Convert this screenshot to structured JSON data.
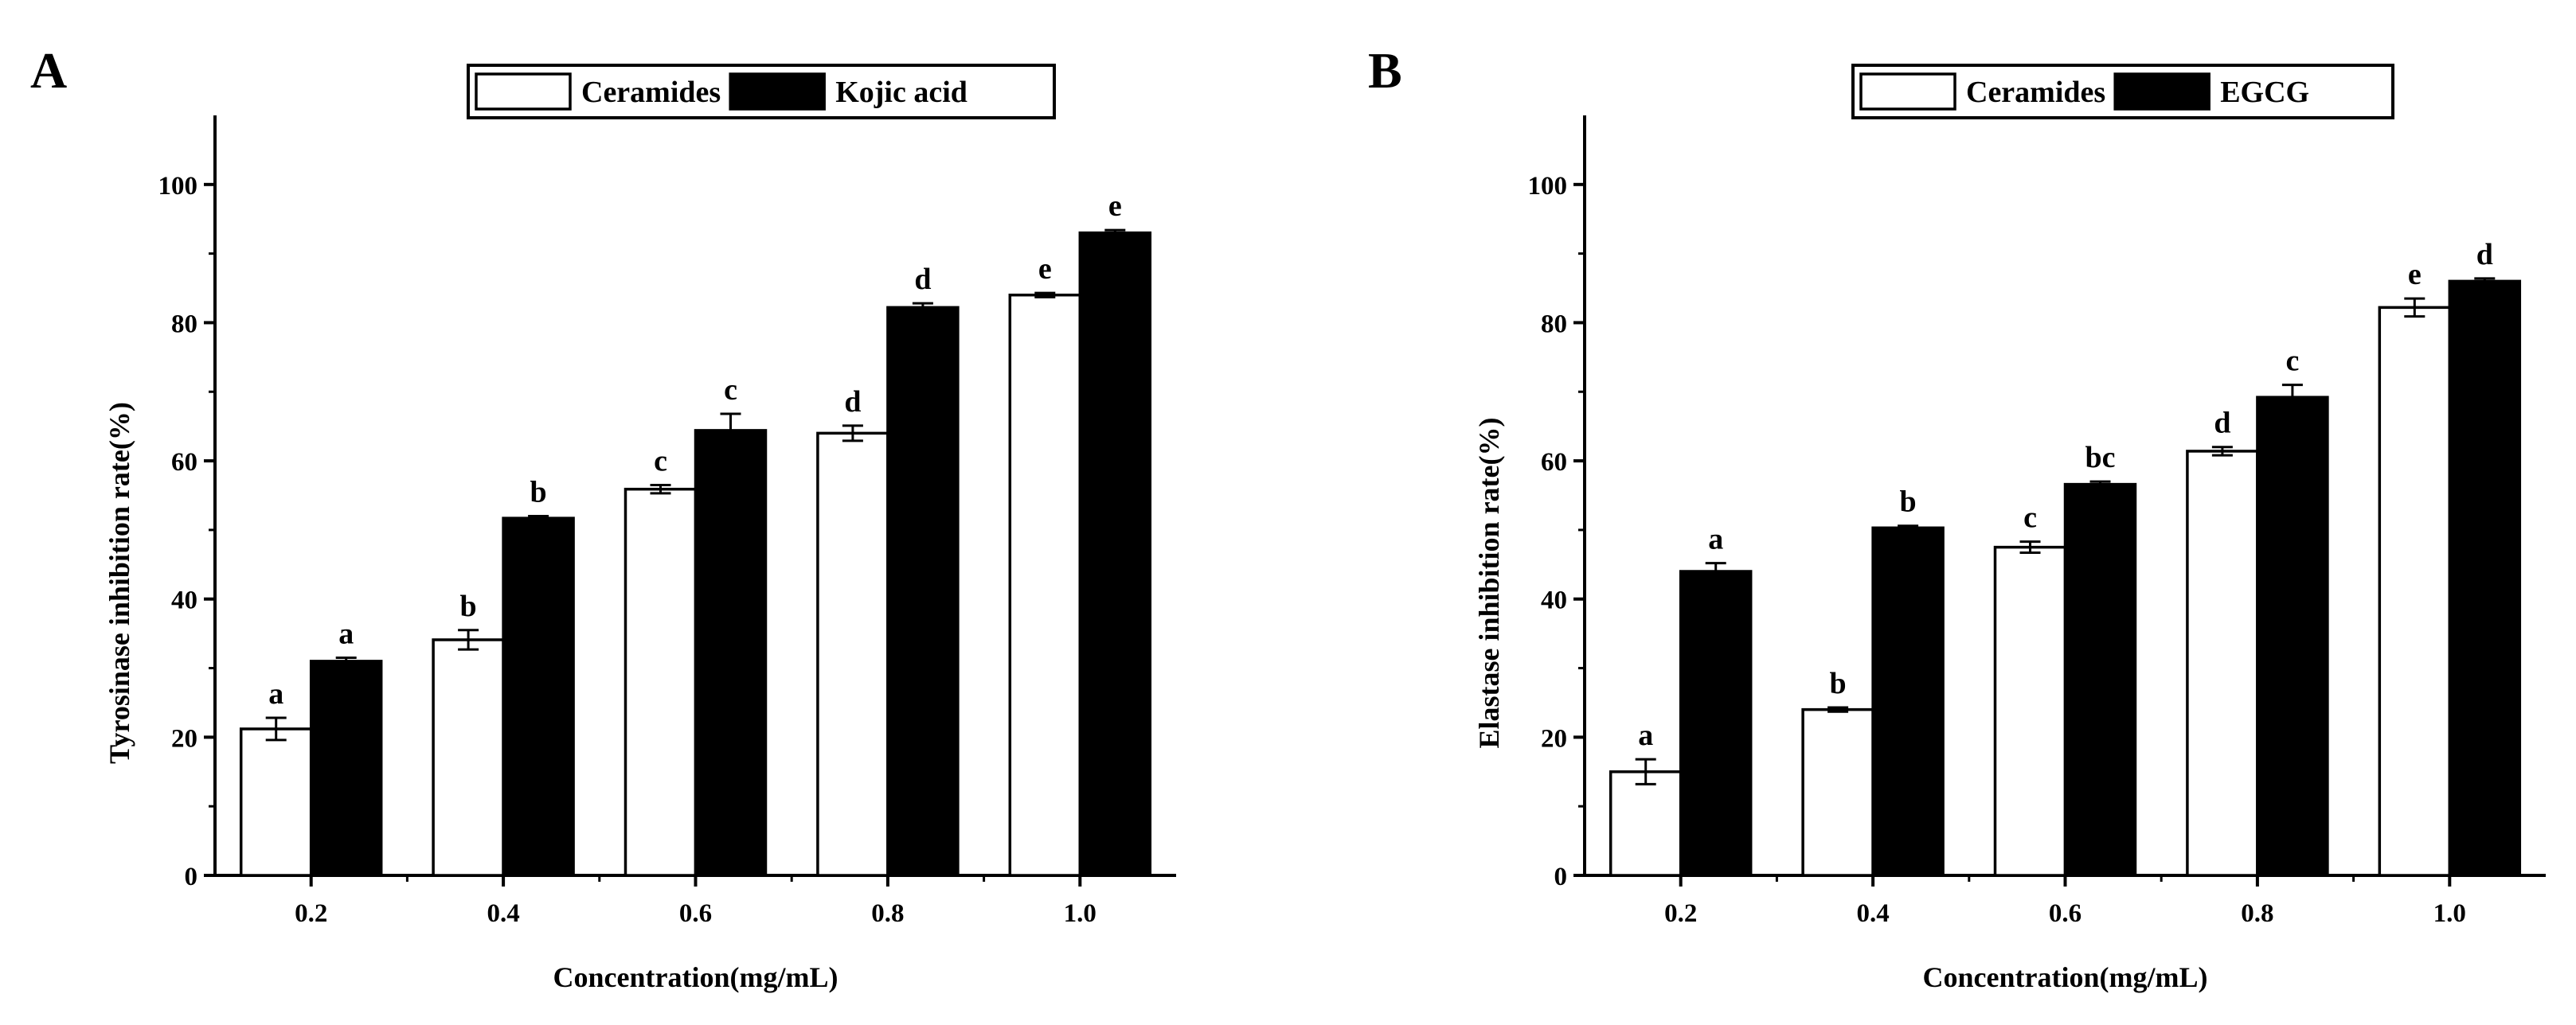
{
  "chart_data": [
    {
      "type": "bar",
      "panel": "A",
      "categories": [
        "0.2",
        "0.4",
        "0.6",
        "0.8",
        "1.0"
      ],
      "xlabel": "Concentration(mg/mL)",
      "ylabel": "Tyrosinase inhibition  rate(%)",
      "ylim": [
        0,
        110
      ],
      "yticks": [
        0,
        20,
        40,
        60,
        80,
        100
      ],
      "legend_position": "top-right",
      "grid": false,
      "series": [
        {
          "name": "Ceramides",
          "color": "#ffffff",
          "values": [
            21.2,
            34.1,
            55.9,
            64.0,
            84.0
          ],
          "errors": [
            1.6,
            1.4,
            0.6,
            1.1,
            0.3
          ],
          "labels": [
            "a",
            "b",
            "c",
            "d",
            "e"
          ]
        },
        {
          "name": "Kojic acid",
          "color": "#000000",
          "values": [
            31.0,
            51.7,
            64.4,
            82.2,
            93.0
          ],
          "errors": [
            0.5,
            0.3,
            2.4,
            0.6,
            0.4
          ],
          "labels": [
            "a",
            "b",
            "c",
            "d",
            "e"
          ]
        }
      ]
    },
    {
      "type": "bar",
      "panel": "B",
      "categories": [
        "0.2",
        "0.4",
        "0.6",
        "0.8",
        "1.0"
      ],
      "xlabel": "Concentration(mg/mL)",
      "ylabel": "Elastase inhibition  rate(%)",
      "ylim": [
        0,
        110
      ],
      "yticks": [
        0,
        20,
        40,
        60,
        80,
        100
      ],
      "legend_position": "top-right",
      "grid": false,
      "series": [
        {
          "name": "Ceramides",
          "color": "#ffffff",
          "values": [
            15.0,
            24.0,
            47.5,
            61.4,
            82.2
          ],
          "errors": [
            1.8,
            0.3,
            0.8,
            0.6,
            1.3
          ],
          "labels": [
            "a",
            "b",
            "c",
            "d",
            "e"
          ]
        },
        {
          "name": "EGCG",
          "color": "#000000",
          "values": [
            44.0,
            50.3,
            56.6,
            69.2,
            86.0
          ],
          "errors": [
            1.2,
            0.3,
            0.4,
            1.8,
            0.4
          ],
          "labels": [
            "a",
            "b",
            "bc",
            "c",
            "d"
          ]
        }
      ]
    }
  ]
}
